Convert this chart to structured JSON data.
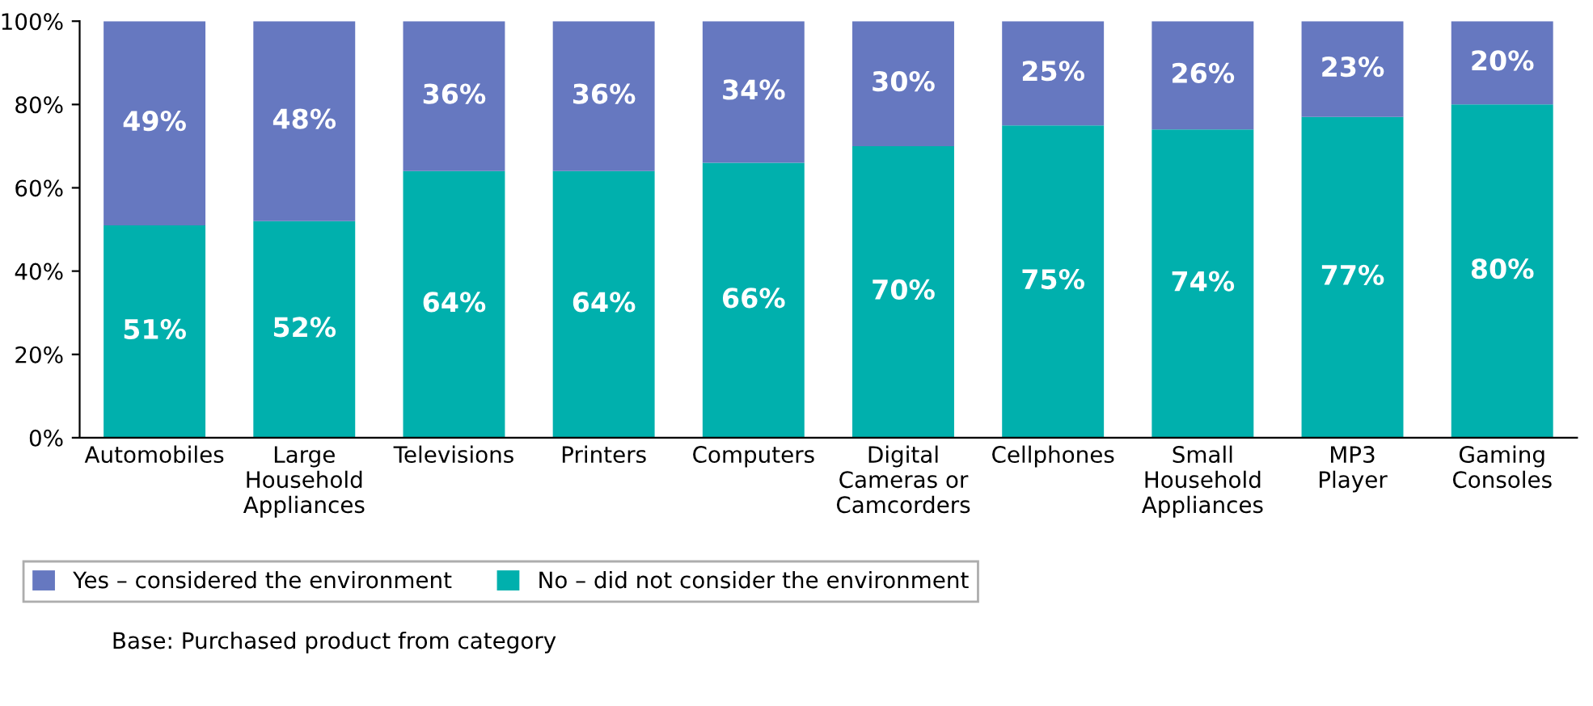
{
  "chart_data": {
    "type": "bar",
    "stacked": true,
    "categories": [
      "Automobiles",
      "Large\nHousehold\nAppliances",
      "Televisions",
      "Printers",
      "Computers",
      "Digital\nCameras or\nCamcorders",
      "Cellphones",
      "Small\nHousehold\nAppliances",
      "MP3\nPlayer",
      "Gaming\nConsoles"
    ],
    "series": [
      {
        "name": "No – did not consider the environment",
        "color": "#00b0ad",
        "values": [
          51,
          52,
          64,
          64,
          66,
          70,
          75,
          74,
          77,
          80
        ],
        "value_labels": [
          "51%",
          "52%",
          "64%",
          "64%",
          "66%",
          "70%",
          "75%",
          "74%",
          "77%",
          "80%"
        ]
      },
      {
        "name": "Yes – considered the environment",
        "color": "#6678c0",
        "values": [
          49,
          48,
          36,
          36,
          34,
          30,
          25,
          26,
          23,
          20
        ],
        "value_labels": [
          "49%",
          "48%",
          "36%",
          "36%",
          "34%",
          "30%",
          "25%",
          "26%",
          "23%",
          "20%"
        ]
      }
    ],
    "ylim": [
      0,
      100
    ],
    "yticks": [
      {
        "value": 0,
        "label": "0%"
      },
      {
        "value": 20,
        "label": "20%"
      },
      {
        "value": 40,
        "label": "40%"
      },
      {
        "value": 60,
        "label": "60%"
      },
      {
        "value": 80,
        "label": "80%"
      },
      {
        "value": 100,
        "label": "100%"
      }
    ],
    "legend": "bottom left",
    "annotations": [
      "Base: Purchased product from category"
    ]
  }
}
